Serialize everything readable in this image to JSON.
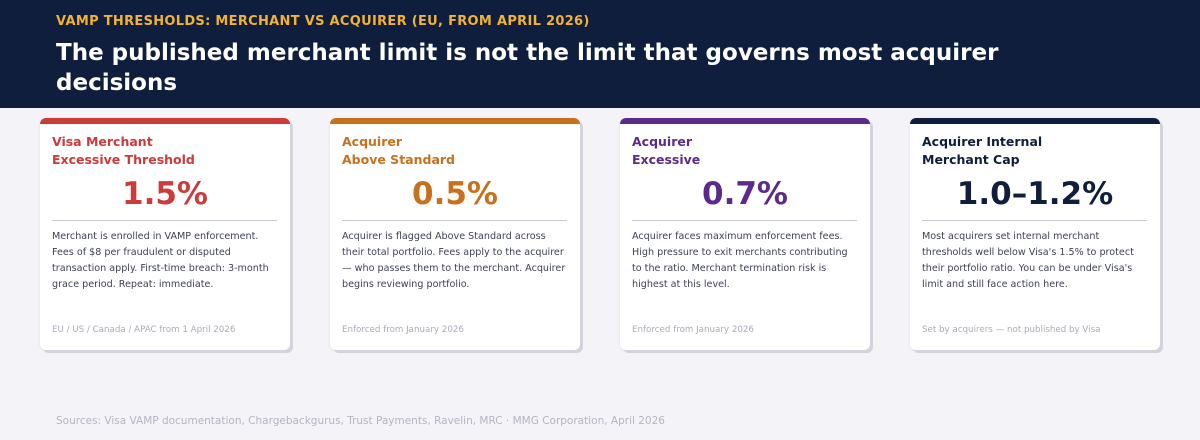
{
  "header": {
    "eyebrow": "VAMP THRESHOLDS: MERCHANT VS ACQUIRER (EU, FROM APRIL 2026)",
    "title": "The published merchant limit is not the limit that governs most acquirer decisions"
  },
  "cards": [
    {
      "label_line1": "Visa Merchant",
      "label_line2": "Excessive Threshold",
      "value": "1.5%",
      "description": "Merchant is enrolled in VAMP enforcement. Fees of $8 per fraudulent or disputed transaction apply. First-time breach: 3-month grace period. Repeat: immediate.",
      "footnote": "EU / US / Canada / APAC from 1 April 2026",
      "accent": "#cc3a3a"
    },
    {
      "label_line1": "Acquirer",
      "label_line2": "Above Standard",
      "value": "0.5%",
      "description": "Acquirer is flagged Above Standard across their total portfolio. Fees apply to the acquirer — who passes them to the merchant. Acquirer begins reviewing portfolio.",
      "footnote": "Enforced from January 2026",
      "accent": "#c8701c"
    },
    {
      "label_line1": "Acquirer",
      "label_line2": "Excessive",
      "value": "0.7%",
      "description": "Acquirer faces maximum enforcement fees. High pressure to exit merchants contributing to the ratio. Merchant termination risk is highest at this level.",
      "footnote": "Enforced from January 2026",
      "accent": "#5b2a8c"
    },
    {
      "label_line1": "Acquirer Internal",
      "label_line2": "Merchant Cap",
      "value": "1.0–1.2%",
      "description": "Most acquirers set internal merchant thresholds well below Visa's 1.5% to protect their portfolio ratio. You can be under Visa's limit and still face action here.",
      "footnote": "Set by acquirers — not published by Visa",
      "accent": "#0f1e3d"
    }
  ],
  "sources": "Sources: Visa VAMP documentation, Chargebackgurus, Trust Payments, Ravelin, MRC  ·  MMG Corporation, April 2026"
}
